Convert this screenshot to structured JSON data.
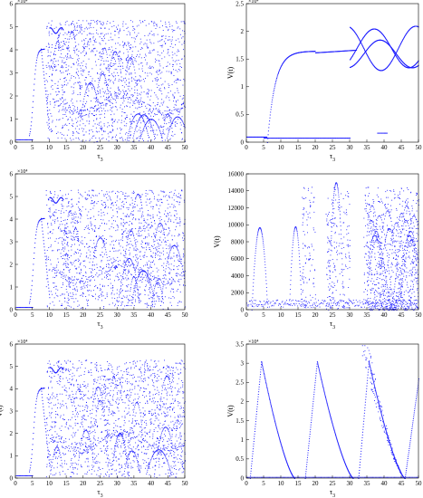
{
  "colors": {
    "points": "#1a1aff",
    "axes": "#000000",
    "background": "#ffffff"
  },
  "chart_data": [
    {
      "type": "scatter",
      "xlabel": "τ3",
      "ylabel": "",
      "xlim": [
        0,
        50
      ],
      "ylim": [
        0,
        6
      ],
      "xticks": [
        "0",
        "5",
        "10",
        "15",
        "20",
        "25",
        "30",
        "35",
        "40",
        "45",
        "50"
      ],
      "yticks": [
        "0",
        "1",
        "2",
        "3",
        "4",
        "5",
        "6"
      ],
      "multiplier": "×10⁴",
      "grid": false,
      "legend": "none"
    },
    {
      "type": "scatter",
      "xlabel": "τ3",
      "ylabel": "V(t)",
      "xlim": [
        0,
        50
      ],
      "ylim": [
        0,
        2.5
      ],
      "xticks": [
        "0",
        "5",
        "10",
        "15",
        "20",
        "25",
        "30",
        "35",
        "40",
        "45",
        "50"
      ],
      "yticks": [
        "0",
        "0.5",
        "1",
        "1.5",
        "2",
        "2.5"
      ],
      "multiplier": "×10⁴",
      "grid": false,
      "legend": "none"
    },
    {
      "type": "scatter",
      "xlabel": "τ3",
      "ylabel": "",
      "xlim": [
        0,
        50
      ],
      "ylim": [
        0,
        6
      ],
      "xticks": [
        "0",
        "5",
        "10",
        "15",
        "20",
        "25",
        "30",
        "35",
        "40",
        "45",
        "50"
      ],
      "yticks": [
        "0",
        "1",
        "2",
        "3",
        "4",
        "5",
        "6"
      ],
      "multiplier": "×10⁴",
      "grid": false,
      "legend": "none"
    },
    {
      "type": "scatter",
      "xlabel": "τ3",
      "ylabel": "V(t)",
      "xlim": [
        0,
        50
      ],
      "ylim": [
        0,
        16000
      ],
      "xticks": [
        "0",
        "5",
        "10",
        "15",
        "20",
        "25",
        "30",
        "35",
        "40",
        "45",
        "50"
      ],
      "yticks": [
        "0",
        "2000",
        "4000",
        "6000",
        "8000",
        "10000",
        "12000",
        "14000",
        "16000"
      ],
      "multiplier": "",
      "grid": false,
      "legend": "none"
    },
    {
      "type": "scatter",
      "xlabel": "τ3",
      "ylabel": "V(t)",
      "xlim": [
        0,
        50
      ],
      "ylim": [
        0,
        6
      ],
      "xticks": [
        "0",
        "5",
        "10",
        "15",
        "20",
        "25",
        "30",
        "35",
        "40",
        "45",
        "50"
      ],
      "yticks": [
        "0",
        "1",
        "2",
        "3",
        "4",
        "5",
        "6"
      ],
      "multiplier": "×10⁴",
      "grid": false,
      "legend": "none"
    },
    {
      "type": "scatter",
      "xlabel": "τ3",
      "ylabel": "V(t)",
      "xlim": [
        0,
        50
      ],
      "ylim": [
        0,
        3.5
      ],
      "xticks": [
        "0",
        "5",
        "10",
        "15",
        "20",
        "25",
        "30",
        "35",
        "40",
        "45",
        "50"
      ],
      "yticks": [
        "0",
        "0.5",
        "1",
        "1.5",
        "2",
        "2.5",
        "3",
        "3.5"
      ],
      "multiplier": "×10⁴",
      "grid": false,
      "legend": "none"
    }
  ]
}
